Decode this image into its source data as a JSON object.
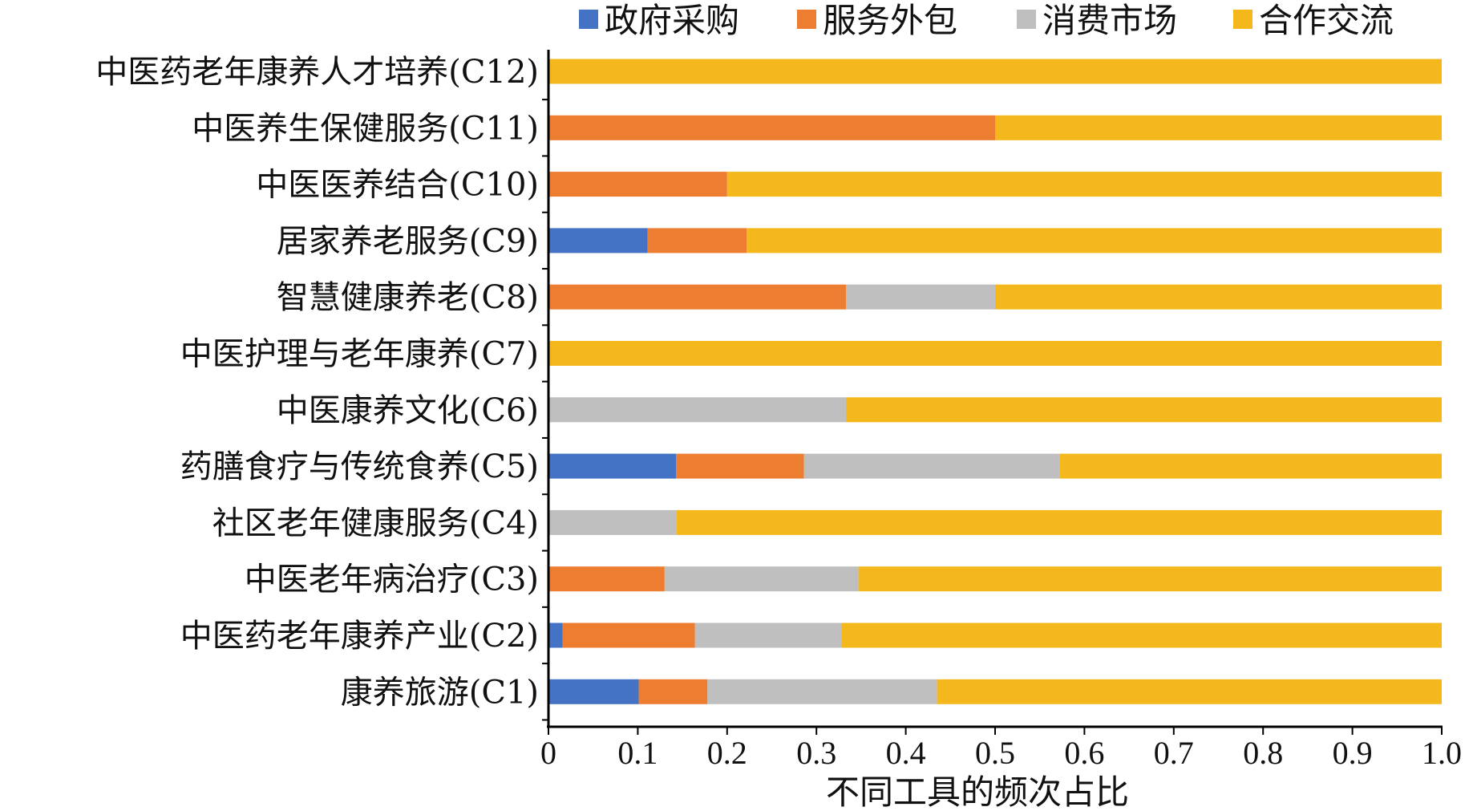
{
  "chart_data": {
    "type": "bar",
    "orientation": "horizontal",
    "stacked": true,
    "title": "",
    "xlabel": "不同工具的频次占比",
    "ylabel": "",
    "xlim": [
      0,
      1.0
    ],
    "xticks": [
      0,
      0.1,
      0.2,
      0.3,
      0.4,
      0.5,
      0.6,
      0.7,
      0.8,
      0.9,
      1.0
    ],
    "xtick_labels": [
      "0",
      "0.1",
      "0.2",
      "0.3",
      "0.4",
      "0.5",
      "0.6",
      "0.7",
      "0.8",
      "0.9",
      "1.0"
    ],
    "legend_position": "top",
    "grid": false,
    "categories": [
      "中医药老年康养人才培养(C12)",
      "中医养生保健服务(C11)",
      "中医医养结合(C10)",
      "居家养老服务(C9)",
      "智慧健康养老(C8)",
      "中医护理与老年康养(C7)",
      "中医康养文化(C6)",
      "药膳食疗与传统食养(C5)",
      "社区老年健康服务(C4)",
      "中医老年病治疗(C3)",
      "中医药老年康养产业(C2)",
      "康养旅游(C1)"
    ],
    "series": [
      {
        "name": "政府采购",
        "color": "#4472C4",
        "values": [
          0,
          0,
          0,
          0.111,
          0,
          0,
          0,
          0.143,
          0,
          0,
          0.016,
          0.101
        ]
      },
      {
        "name": "服务外包",
        "color": "#ED7D31",
        "values": [
          0,
          0.5,
          0.2,
          0.111,
          0.333,
          0,
          0,
          0.143,
          0,
          0.13,
          0.148,
          0.077
        ]
      },
      {
        "name": "消费市场",
        "color": "#BFBFBF",
        "values": [
          0,
          0,
          0,
          0,
          0.167,
          0,
          0.333,
          0.286,
          0.143,
          0.217,
          0.164,
          0.257
        ]
      },
      {
        "name": "合作交流",
        "color": "#F4B81C",
        "values": [
          1.0,
          0.5,
          0.8,
          0.778,
          0.5,
          1.0,
          0.667,
          0.428,
          0.857,
          0.653,
          0.672,
          0.565
        ]
      }
    ]
  }
}
